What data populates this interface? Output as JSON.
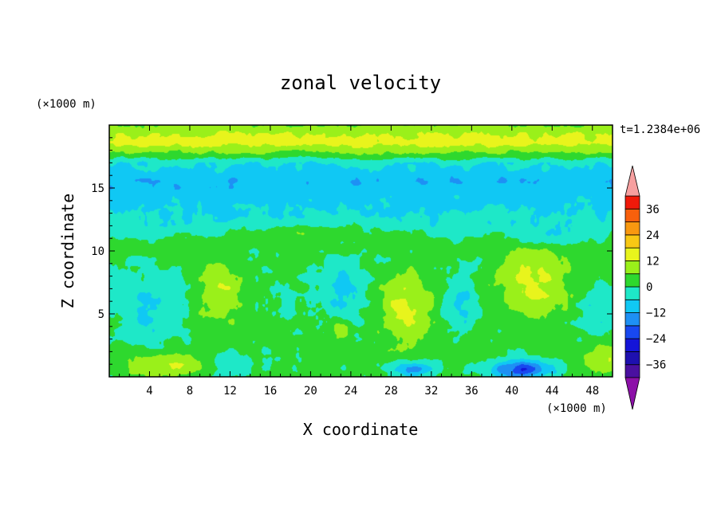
{
  "chart_data": {
    "type": "heatmap",
    "title": "zonal velocity",
    "xlabel": "X coordinate",
    "ylabel": "Z coordinate",
    "x_unit": "(×1000 m)",
    "y_unit": "(×1000 m)",
    "time_label": "t=1.2384e+06",
    "xlim": [
      0,
      50
    ],
    "ylim": [
      0,
      20
    ],
    "x_ticks": [
      4,
      8,
      12,
      16,
      20,
      24,
      28,
      32,
      36,
      40,
      44,
      48
    ],
    "y_ticks": [
      5,
      10,
      15
    ],
    "colorbar": {
      "range": [
        -42,
        42
      ],
      "tick_values": [
        36,
        24,
        12,
        0,
        -12,
        -24,
        -36
      ],
      "tick_labels": [
        "36",
        "24",
        "12",
        "0",
        "−12",
        "−24",
        "−36"
      ],
      "extend": "both",
      "low_arrow_color": "#8c10a8",
      "high_arrow_color": "#f7a0a0",
      "levels": [
        {
          "from": -42,
          "to": -36,
          "color": "#4a10a0"
        },
        {
          "from": -36,
          "to": -30,
          "color": "#1e10b0"
        },
        {
          "from": -30,
          "to": -24,
          "color": "#1414d8"
        },
        {
          "from": -24,
          "to": -18,
          "color": "#1848f0"
        },
        {
          "from": -18,
          "to": -12,
          "color": "#1e90f4"
        },
        {
          "from": -12,
          "to": -6,
          "color": "#10c8f4"
        },
        {
          "from": -6,
          "to": 0,
          "color": "#1ee8c8"
        },
        {
          "from": 0,
          "to": 6,
          "color": "#2ed82e"
        },
        {
          "from": 6,
          "to": 12,
          "color": "#9af01a"
        },
        {
          "from": 12,
          "to": 18,
          "color": "#e8f41c"
        },
        {
          "from": 18,
          "to": 24,
          "color": "#f8c814"
        },
        {
          "from": 24,
          "to": 30,
          "color": "#f89810"
        },
        {
          "from": 30,
          "to": 36,
          "color": "#f8600c"
        },
        {
          "from": 36,
          "to": 42,
          "color": "#f01a0a"
        }
      ]
    },
    "field": [
      {
        "x": 6,
        "z": 1,
        "value": 9,
        "sx": 4,
        "sz": 1.0
      },
      {
        "x": 12,
        "z": 1,
        "value": -8,
        "sx": 2.5,
        "sz": 0.9
      },
      {
        "x": 30,
        "z": 0.6,
        "value": -16,
        "sx": 2.0,
        "sz": 0.6
      },
      {
        "x": 41,
        "z": 0.6,
        "value": -24,
        "sx": 3.0,
        "sz": 0.7
      },
      {
        "x": 49,
        "z": 1.5,
        "value": 10,
        "sx": 2.0,
        "sz": 1.2
      },
      {
        "x": 4,
        "z": 5.5,
        "value": -9,
        "sx": 3.0,
        "sz": 2.5
      },
      {
        "x": 11,
        "z": 7,
        "value": 11,
        "sx": 2.2,
        "sz": 2.5
      },
      {
        "x": 18,
        "z": 6.5,
        "value": -2,
        "sx": 1.8,
        "sz": 2.0
      },
      {
        "x": 23,
        "z": 7,
        "value": -9,
        "sx": 2.0,
        "sz": 2.5
      },
      {
        "x": 23,
        "z": 3.7,
        "value": 11,
        "sx": 1.0,
        "sz": 0.8
      },
      {
        "x": 29.5,
        "z": 5.5,
        "value": 13,
        "sx": 2.4,
        "sz": 2.8
      },
      {
        "x": 35,
        "z": 6,
        "value": -9,
        "sx": 1.5,
        "sz": 2.5
      },
      {
        "x": 42,
        "z": 7.5,
        "value": 13,
        "sx": 3.5,
        "sz": 2.8
      },
      {
        "x": 48.5,
        "z": 5,
        "value": -7,
        "sx": 1.8,
        "sz": 2.5
      },
      {
        "x": 20,
        "z": 11.5,
        "value": 6,
        "sx": 7.0,
        "sz": 0.8
      },
      {
        "x": 44,
        "z": 11,
        "value": -6,
        "sx": 3.0,
        "sz": 0.9
      }
    ],
    "z_profile": [
      {
        "z": 0,
        "value": 2
      },
      {
        "z": 9,
        "value": 1
      },
      {
        "z": 10.5,
        "value": 2
      },
      {
        "z": 12,
        "value": -4
      },
      {
        "z": 13.5,
        "value": -7
      },
      {
        "z": 15.5,
        "value": -11
      },
      {
        "z": 17,
        "value": -5
      },
      {
        "z": 17.8,
        "value": 6
      },
      {
        "z": 18.6,
        "value": 15
      },
      {
        "z": 19.3,
        "value": 11
      },
      {
        "z": 20,
        "value": 7
      }
    ]
  }
}
